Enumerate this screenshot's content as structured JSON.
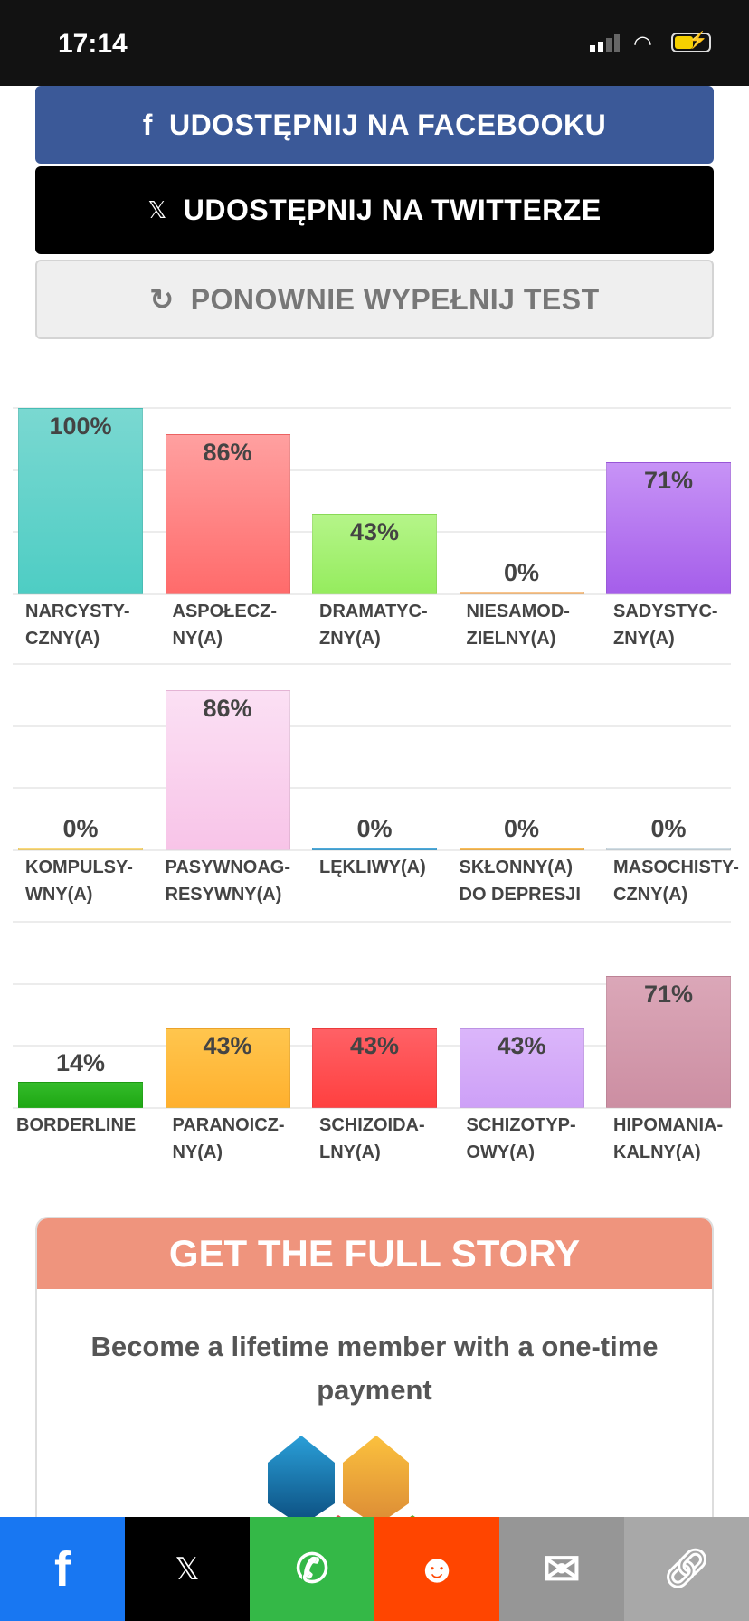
{
  "status_bar": {
    "time": "17:14"
  },
  "buttons": {
    "facebook": "UDOSTĘPNIJ NA FACEBOOKU",
    "twitter": "UDOSTĘPNIJ NA TWITTERZE",
    "retake": "PONOWNIE WYPEŁNIJ TEST"
  },
  "chart_data": [
    {
      "type": "bar",
      "ylim": [
        0,
        100
      ],
      "categories": [
        "NARCYSTY-\nCZNY(A)",
        "ASPOŁECZ-\nNY(A)",
        "DRAMATYC-\nZNY(A)",
        "NIESAMOD-\nZIELNY(A)",
        "SADYSTYC-\nZNY(A)"
      ],
      "values": [
        100,
        86,
        43,
        0,
        71
      ],
      "labels": [
        "100%",
        "86%",
        "43%",
        "0%",
        "71%"
      ],
      "colors": [
        [
          "#7ad8d1",
          "#4ecdc4"
        ],
        [
          "#ffa0a0",
          "#ff6b6b"
        ],
        [
          "#b5f589",
          "#95ec5e"
        ],
        [
          "#ffd3a0",
          "#f5b77a"
        ],
        [
          "#c793f6",
          "#a55eea"
        ]
      ]
    },
    {
      "type": "bar",
      "ylim": [
        0,
        100
      ],
      "categories": [
        "KOMPULSY-\nWNY(A)",
        "PASYWNOAG-\nRESYWNY(A)",
        "LĘKLIWY(A)",
        "SKŁONNY(A)\nDO DEPRESJI",
        "MASOCHISTY-\nCZNY(A)"
      ],
      "values": [
        0,
        86,
        0,
        0,
        0
      ],
      "labels": [
        "0%",
        "86%",
        "0%",
        "0%",
        "0%"
      ],
      "colors": [
        [
          "#fde08a",
          "#f7d26a"
        ],
        [
          "#fbe0f4",
          "#f8c4e8"
        ],
        [
          "#5fb4e0",
          "#3a9fd4"
        ],
        [
          "#ffc870",
          "#f0b040"
        ],
        [
          "#d8e4ea",
          "#c8d6de"
        ]
      ]
    },
    {
      "type": "bar",
      "ylim": [
        0,
        100
      ],
      "categories": [
        "BORDERLINE",
        "PARANOICZ-\nNY(A)",
        "SCHIZOIDA-\nLNY(A)",
        "SCHIZOTYP-\nOWY(A)",
        "HIPOMANIA-\nKALNY(A)"
      ],
      "values": [
        14,
        43,
        43,
        43,
        71
      ],
      "labels": [
        "14%",
        "43%",
        "43%",
        "43%",
        "71%"
      ],
      "colors": [
        [
          "#34bb2a",
          "#1ea813"
        ],
        [
          "#ffc64e",
          "#ffb02e"
        ],
        [
          "#ff6166",
          "#ff4040"
        ],
        [
          "#dbb6fa",
          "#cda0f7"
        ],
        [
          "#dba7b8",
          "#cc8ea2"
        ]
      ]
    }
  ],
  "promo": {
    "title": "GET THE FULL STORY",
    "text": "Become a lifetime member with a one-time payment"
  },
  "share_bar": [
    {
      "name": "facebook",
      "color": "#1877f2"
    },
    {
      "name": "x",
      "color": "#000000"
    },
    {
      "name": "whatsapp",
      "color": "#34b847"
    },
    {
      "name": "reddit",
      "color": "#ff4500"
    },
    {
      "name": "email",
      "color": "#969696"
    },
    {
      "name": "copy-link",
      "color": "#a8a8a8"
    }
  ]
}
